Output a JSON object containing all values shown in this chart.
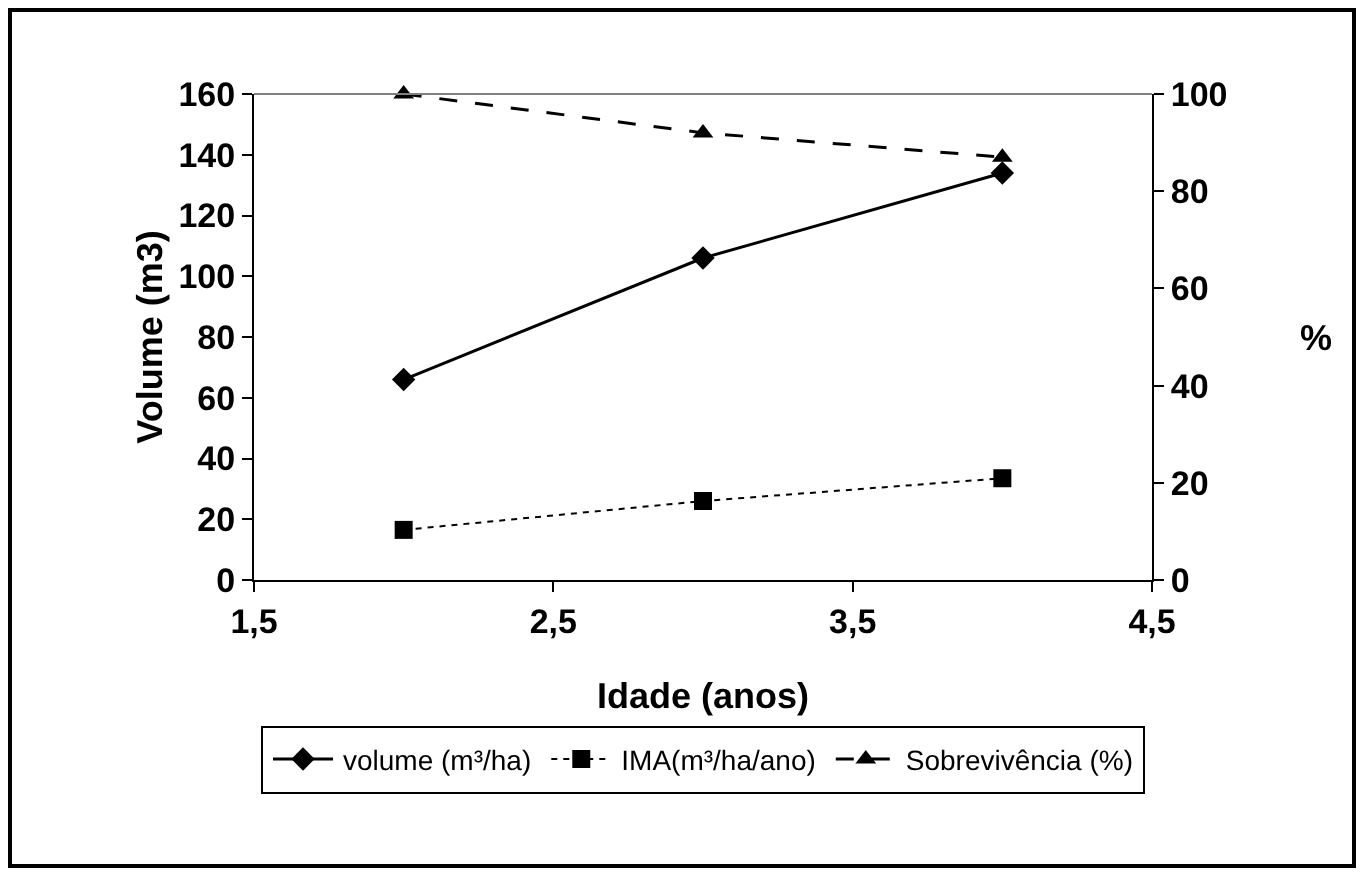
{
  "chart_data": {
    "type": "line",
    "xlabel": "Idade (anos)",
    "ylabel": "Volume (m3)",
    "y2label": "%",
    "x": [
      2,
      3,
      4
    ],
    "xlim": [
      1.5,
      4.5
    ],
    "xticks": [
      {
        "value": 1.5,
        "label": "1,5"
      },
      {
        "value": 2.5,
        "label": "2,5"
      },
      {
        "value": 3.5,
        "label": "3,5"
      },
      {
        "value": 4.5,
        "label": "4,5"
      }
    ],
    "ylim": [
      0,
      160
    ],
    "yticks": [
      0,
      20,
      40,
      60,
      80,
      100,
      120,
      140,
      160
    ],
    "y2lim": [
      0,
      100
    ],
    "y2ticks": [
      0,
      20,
      40,
      60,
      80,
      100
    ],
    "grid": false,
    "legend": "bottom",
    "series": [
      {
        "name": "volume (m³/ha)",
        "color": "#000000",
        "values": [
          66,
          106,
          134
        ],
        "marker": "diamond",
        "line_style": "solid"
      },
      {
        "name": "IMA(m³/ha/ano)",
        "color": "#000000",
        "values": [
          16.5,
          26,
          33.5
        ],
        "marker": "square",
        "line_style": "dotted"
      },
      {
        "name": "Sobrevivência (%)",
        "color": "#000000",
        "values": [
          100,
          92,
          87
        ],
        "marker": "triangle",
        "line_style": "dashed",
        "axis": "y2"
      }
    ]
  }
}
